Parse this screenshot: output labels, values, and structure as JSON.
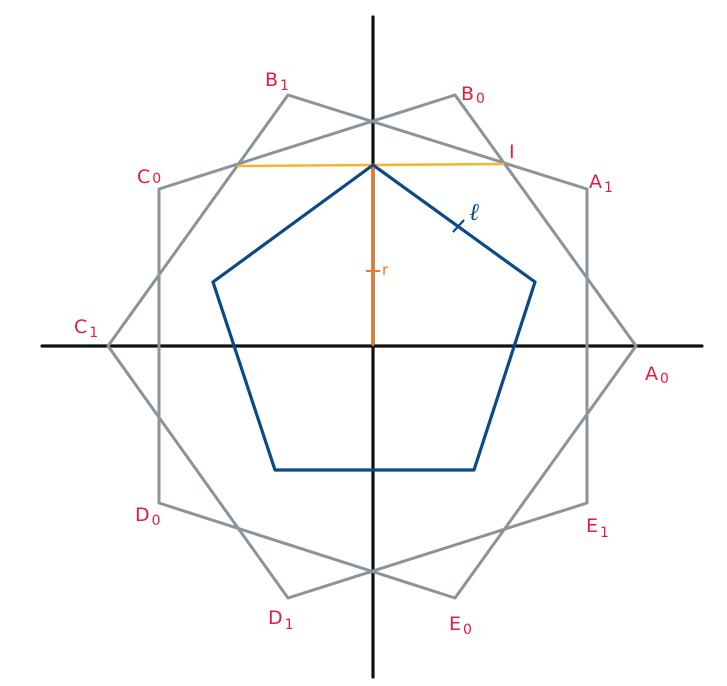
{
  "vertices": [
    {
      "id": "A0",
      "letter": "A",
      "sub": "0"
    },
    {
      "id": "A1",
      "letter": "A",
      "sub": "1"
    },
    {
      "id": "B0",
      "letter": "B",
      "sub": "0"
    },
    {
      "id": "B1",
      "letter": "B",
      "sub": "1"
    },
    {
      "id": "C0",
      "letter": "C",
      "sub": "0"
    },
    {
      "id": "C1",
      "letter": "C",
      "sub": "1"
    },
    {
      "id": "D0",
      "letter": "D",
      "sub": "0"
    },
    {
      "id": "D1",
      "letter": "D",
      "sub": "1"
    },
    {
      "id": "E0",
      "letter": "E",
      "sub": "0"
    },
    {
      "id": "E1",
      "letter": "E",
      "sub": "1"
    }
  ],
  "point_I": "I",
  "apothem_label": "r",
  "side_label": "ℓ",
  "colors": {
    "outer_pentagons": "#8a949a",
    "inner_pentagon": "#0b4a86",
    "chord": "#f2b632",
    "apothem": "#ef7a1f",
    "labels": "#e01f3d",
    "axes": "#111111"
  }
}
